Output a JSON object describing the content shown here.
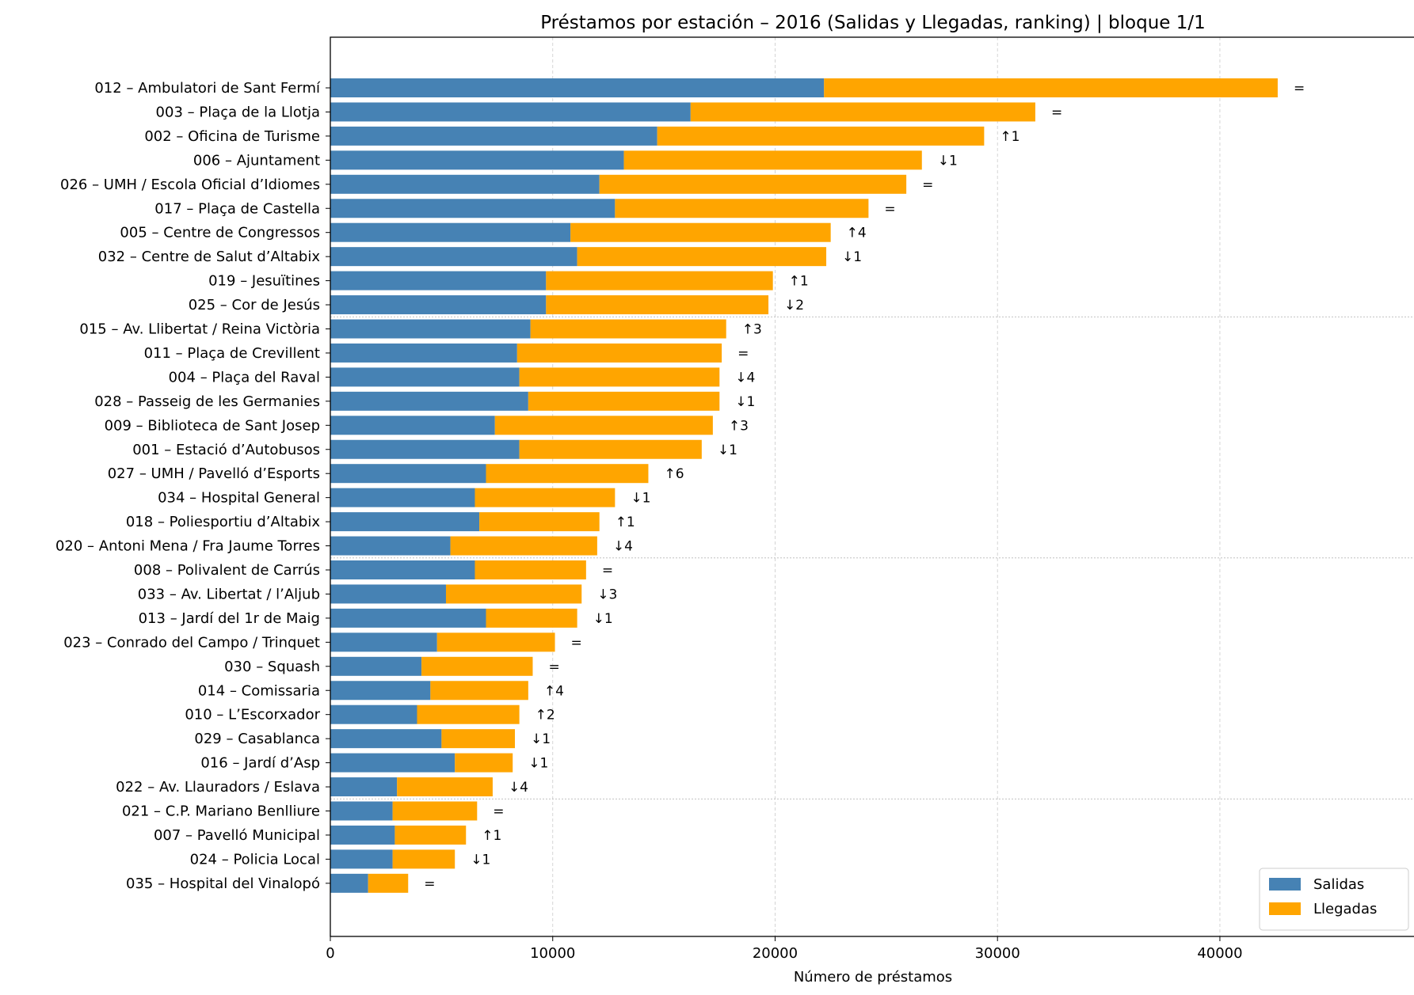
{
  "chart_data": {
    "type": "bar",
    "orientation": "horizontal",
    "stacked": true,
    "title": "Préstamos por estación – 2016 (Salidas y Llegadas, ranking)  |  bloque 1/1",
    "xlabel": "Número de préstamos",
    "ylabel": "",
    "xlim": [
      0,
      48800
    ],
    "xticks": [
      0,
      10000,
      20000,
      30000,
      40000
    ],
    "grid": true,
    "legend_position": "bottom-right",
    "categories": [
      "012 – Ambulatori de Sant Fermí",
      "003 – Plaça de la Llotja",
      "002 – Oficina de Turisme",
      "006 – Ajuntament",
      "026 – UMH / Escola Oficial d’Idiomes",
      "017 – Plaça de Castella",
      "005 – Centre de Congressos",
      "032 – Centre de Salut d’Altabix",
      "019 – Jesuïtines",
      "025 – Cor de Jesús",
      "015 – Av. Llibertat / Reina Victòria",
      "011 – Plaça de Crevillent",
      "004 – Plaça del Raval",
      "028 – Passeig de les Germanies",
      "009 – Biblioteca de Sant Josep",
      "001 – Estació d’Autobusos",
      "027 – UMH / Pavelló d’Esports",
      "034 – Hospital General",
      "018 – Poliesportiu d’Altabix",
      "020 – Antoni Mena / Fra Jaume Torres",
      "008 – Polivalent de Carrús",
      "033 – Av. Libertat / l’Aljub",
      "013 – Jardí del 1r de Maig",
      "023 – Conrado del Campo / Trinquet",
      "030 – Squash",
      "014 – Comissaria",
      "010 – L’Escorxador",
      "029 – Casablanca",
      "016 – Jardí d’Asp",
      "022 – Av. Llauradors / Eslava",
      "021 – C.P. Mariano Benlliure",
      "007 – Pavelló Municipal",
      "024 – Policia Local",
      "035 – Hospital del Vinalopó"
    ],
    "series": [
      {
        "name": "Salidas",
        "color": "#4682b4",
        "values": [
          22200,
          16200,
          14700,
          13200,
          12100,
          12800,
          10800,
          11100,
          9700,
          9700,
          9000,
          8400,
          8500,
          8900,
          7400,
          8500,
          7000,
          6500,
          6700,
          5400,
          6500,
          5200,
          7000,
          4800,
          4100,
          4500,
          3900,
          5000,
          5600,
          3000,
          2800,
          2900,
          2800,
          1700
        ]
      },
      {
        "name": "Llegadas",
        "color": "#ffa500",
        "values": [
          20400,
          15500,
          14700,
          13400,
          13800,
          11400,
          11700,
          11200,
          10200,
          10000,
          8800,
          9200,
          9000,
          8600,
          9800,
          8200,
          7300,
          6300,
          5400,
          6600,
          5000,
          6100,
          4100,
          5300,
          5000,
          4400,
          4600,
          3300,
          2600,
          4300,
          3800,
          3200,
          2800,
          1800
        ]
      }
    ],
    "rank_changes": [
      "=",
      "=",
      "↑1",
      "↓1",
      "=",
      "=",
      "↑4",
      "↓1",
      "↑1",
      "↓2",
      "↑3",
      "=",
      "↓4",
      "↓1",
      "↑3",
      "↓1",
      "↑6",
      "↓1",
      "↑1",
      "↓4",
      "=",
      "↓3",
      "↓1",
      "=",
      "=",
      "↑4",
      "↑2",
      "↓1",
      "↓1",
      "↓4",
      "=",
      "↑1",
      "↓1",
      "="
    ]
  }
}
